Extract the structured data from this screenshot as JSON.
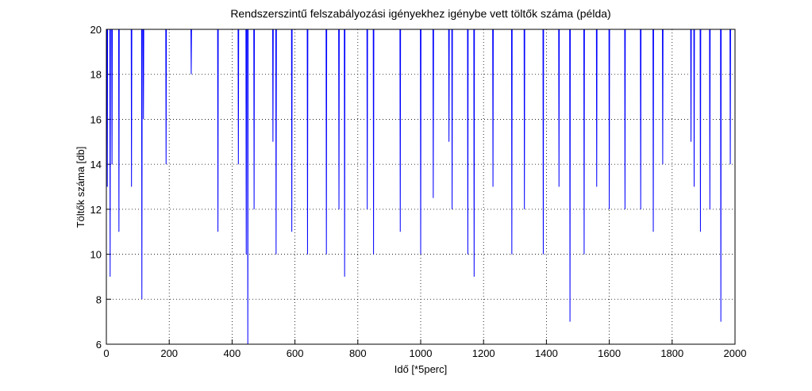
{
  "chart_data": {
    "type": "line",
    "title": "Rendszerszintű felszabályozási igényekhez igénybe vett töltők száma (példa)",
    "x_label": "Idő [*5perc]",
    "y_label": "Töltők száma [db]",
    "xlim": [
      0,
      2000
    ],
    "xticks": [
      0,
      200,
      400,
      600,
      800,
      1000,
      1200,
      1400,
      1600,
      1800,
      2000
    ],
    "ylim": [
      6,
      20
    ],
    "yticks": [
      6,
      8,
      10,
      12,
      14,
      16,
      18,
      20
    ],
    "grid": true,
    "series": [
      {
        "color": "#0000ff",
        "x": [
          0,
          2,
          3,
          4,
          11,
          12,
          13,
          17,
          18,
          19,
          39,
          40,
          41,
          79,
          80,
          81,
          112,
          113,
          114,
          117,
          118,
          119,
          189,
          190,
          191,
          269,
          270,
          271,
          354,
          355,
          356,
          419,
          420,
          421,
          444,
          445,
          446,
          449,
          450,
          451,
          469,
          470,
          471,
          529,
          530,
          531,
          539,
          540,
          541,
          589,
          590,
          591,
          639,
          640,
          641,
          699,
          700,
          701,
          739,
          740,
          741,
          757,
          758,
          759,
          829,
          830,
          831,
          849,
          850,
          851,
          934,
          935,
          936,
          999,
          1000,
          1001,
          1039,
          1040,
          1041,
          1089,
          1090,
          1091,
          1099,
          1100,
          1101,
          1149,
          1150,
          1151,
          1169,
          1170,
          1171,
          1229,
          1230,
          1231,
          1289,
          1290,
          1291,
          1329,
          1330,
          1331,
          1389,
          1390,
          1391,
          1439,
          1440,
          1441,
          1474,
          1475,
          1476,
          1519,
          1520,
          1521,
          1559,
          1560,
          1561,
          1599,
          1600,
          1601,
          1649,
          1650,
          1651,
          1699,
          1700,
          1701,
          1739,
          1740,
          1741,
          1769,
          1770,
          1771,
          1859,
          1860,
          1861,
          1869,
          1870,
          1871,
          1889,
          1890,
          1891,
          1919,
          1920,
          1921,
          1954,
          1955,
          1956,
          1984,
          1985,
          1986,
          2000
        ],
        "values": [
          20,
          20,
          13,
          20,
          20,
          9,
          20,
          20,
          14,
          20,
          20,
          11,
          20,
          20,
          13,
          20,
          20,
          8,
          20,
          20,
          16,
          20,
          20,
          14,
          20,
          20,
          18,
          20,
          20,
          11,
          20,
          20,
          14,
          20,
          20,
          10,
          20,
          20,
          6,
          20,
          20,
          12,
          20,
          20,
          15,
          20,
          20,
          10,
          20,
          20,
          11,
          20,
          20,
          10,
          20,
          20,
          10,
          20,
          20,
          12,
          20,
          20,
          9,
          20,
          20,
          12,
          20,
          20,
          10,
          20,
          20,
          11,
          20,
          20,
          10,
          20,
          20,
          12.5,
          20,
          20,
          15,
          20,
          20,
          12,
          20,
          20,
          10,
          20,
          20,
          9,
          20,
          20,
          13,
          20,
          20,
          10,
          20,
          20,
          12,
          20,
          20,
          10,
          20,
          20,
          13,
          20,
          20,
          7,
          20,
          20,
          10,
          20,
          20,
          13,
          20,
          20,
          12,
          20,
          20,
          12,
          20,
          20,
          12,
          20,
          20,
          11,
          20,
          20,
          14,
          20,
          20,
          15,
          20,
          20,
          13,
          20,
          20,
          11,
          20,
          20,
          12,
          20,
          20,
          7,
          20,
          20,
          14,
          20,
          20
        ]
      }
    ]
  }
}
